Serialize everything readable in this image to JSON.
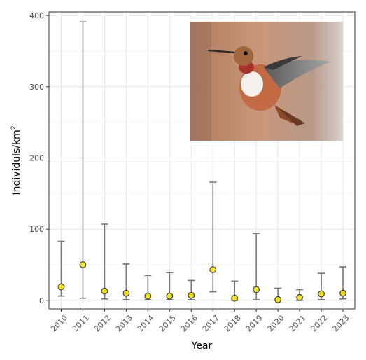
{
  "chart_data": {
    "type": "scatter",
    "title": "",
    "xlabel": "Year",
    "ylabel_text": "Individuls/km",
    "ylabel_superscript": "2",
    "categories": [
      "2010",
      "2011",
      "2012",
      "2013",
      "2014",
      "2015",
      "2016",
      "2017",
      "2018",
      "2019",
      "2020",
      "2021",
      "2022",
      "2023"
    ],
    "series": [
      {
        "estimate": [
          19,
          50,
          13,
          10,
          6,
          6,
          7,
          43,
          3,
          15,
          1,
          4,
          9,
          10
        ],
        "lower": [
          6,
          3,
          2,
          1,
          1,
          1,
          1,
          12,
          0,
          1,
          0,
          0,
          1,
          2
        ],
        "upper": [
          83,
          391,
          107,
          51,
          35,
          39,
          28,
          166,
          27,
          94,
          17,
          15,
          38,
          47
        ]
      }
    ],
    "ylim": [
      -12,
      405
    ],
    "yticks": [
      0,
      100,
      200,
      300,
      400
    ],
    "grid": true,
    "legend": "none",
    "point_color": "#f0e020",
    "errorbar_color": "#777777"
  },
  "inset_photo": {
    "subject": "hummingbird-photo",
    "background_color": "#c08a6a"
  }
}
